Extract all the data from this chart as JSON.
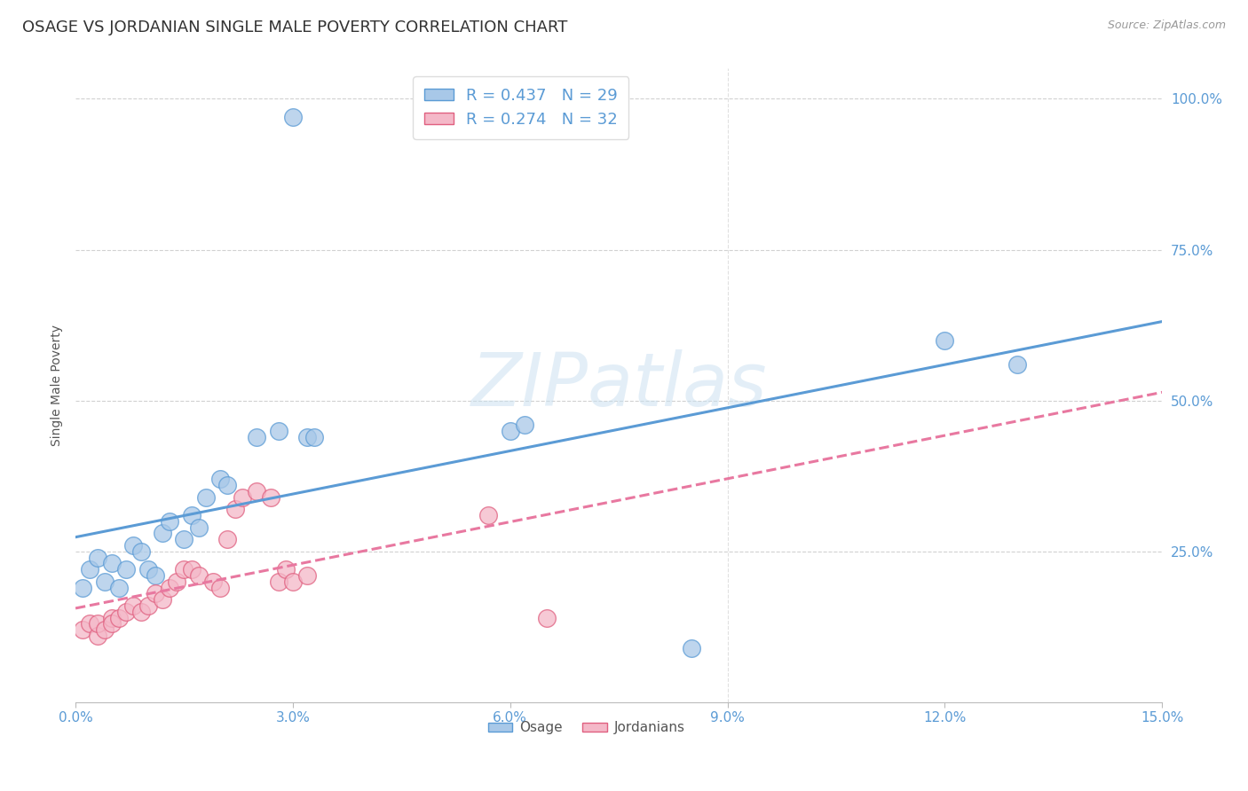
{
  "title": "OSAGE VS JORDANIAN SINGLE MALE POVERTY CORRELATION CHART",
  "source": "Source: ZipAtlas.com",
  "ylabel": "Single Male Poverty",
  "xlim": [
    0.0,
    0.15
  ],
  "ylim": [
    0.0,
    1.05
  ],
  "xticks": [
    0.0,
    0.03,
    0.06,
    0.09,
    0.12,
    0.15
  ],
  "xticklabels": [
    "0.0%",
    "3.0%",
    "6.0%",
    "9.0%",
    "12.0%",
    "15.0%"
  ],
  "yticks": [
    0.25,
    0.5,
    0.75,
    1.0
  ],
  "yticklabels": [
    "25.0%",
    "50.0%",
    "75.0%",
    "100.0%"
  ],
  "osage_color": "#a8c8e8",
  "jordanian_color": "#f4b8c8",
  "osage_edge_color": "#5b9bd5",
  "jordanian_edge_color": "#e06080",
  "osage_line_color": "#5b9bd5",
  "jordanian_line_color": "#e878a0",
  "background_color": "#ffffff",
  "grid_color": "#cccccc",
  "R_osage": 0.437,
  "N_osage": 29,
  "R_jordanian": 0.274,
  "N_jordanian": 32,
  "osage_x": [
    0.001,
    0.002,
    0.003,
    0.004,
    0.005,
    0.006,
    0.007,
    0.008,
    0.009,
    0.01,
    0.011,
    0.012,
    0.013,
    0.015,
    0.016,
    0.017,
    0.018,
    0.02,
    0.021,
    0.025,
    0.028,
    0.03,
    0.032,
    0.033,
    0.06,
    0.062,
    0.085,
    0.12,
    0.13
  ],
  "osage_y": [
    0.19,
    0.22,
    0.24,
    0.2,
    0.23,
    0.19,
    0.22,
    0.26,
    0.25,
    0.22,
    0.21,
    0.28,
    0.3,
    0.27,
    0.31,
    0.29,
    0.34,
    0.37,
    0.36,
    0.44,
    0.45,
    0.97,
    0.44,
    0.44,
    0.45,
    0.46,
    0.09,
    0.6,
    0.56
  ],
  "jordanian_x": [
    0.001,
    0.002,
    0.003,
    0.003,
    0.004,
    0.005,
    0.005,
    0.006,
    0.007,
    0.008,
    0.009,
    0.01,
    0.011,
    0.012,
    0.013,
    0.014,
    0.015,
    0.016,
    0.017,
    0.019,
    0.02,
    0.021,
    0.022,
    0.023,
    0.025,
    0.027,
    0.028,
    0.029,
    0.03,
    0.032,
    0.057,
    0.065
  ],
  "jordanian_y": [
    0.12,
    0.13,
    0.11,
    0.13,
    0.12,
    0.14,
    0.13,
    0.14,
    0.15,
    0.16,
    0.15,
    0.16,
    0.18,
    0.17,
    0.19,
    0.2,
    0.22,
    0.22,
    0.21,
    0.2,
    0.19,
    0.27,
    0.32,
    0.34,
    0.35,
    0.34,
    0.2,
    0.22,
    0.2,
    0.21,
    0.31,
    0.14
  ],
  "legend_label_osage": "Osage",
  "legend_label_jordanian": "Jordanians",
  "title_fontsize": 13,
  "axis_label_fontsize": 10,
  "tick_fontsize": 11,
  "tick_color": "#5b9bd5",
  "title_color": "#333333",
  "watermark_text": "ZIPatlas",
  "watermark_color": "#c8dff0",
  "watermark_alpha": 0.5
}
